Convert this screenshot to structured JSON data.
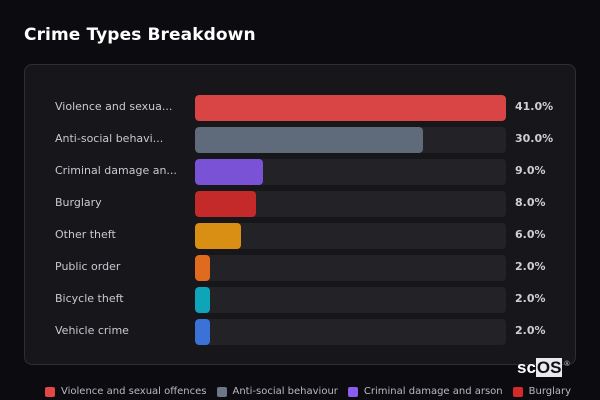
{
  "header": {
    "title": "Crime Types Breakdown"
  },
  "rows": [
    {
      "label": "Violence and sexua...",
      "full_label": "Violence and sexual offences",
      "value": 41.0,
      "pct_label": "41.0%",
      "color": "#d94444"
    },
    {
      "label": "Anti-social behavi...",
      "full_label": "Anti-social behaviour",
      "value": 30.0,
      "pct_label": "30.0%",
      "color": "#5f6b7a"
    },
    {
      "label": "Criminal damage an...",
      "full_label": "Criminal damage and arson",
      "value": 9.0,
      "pct_label": "9.0%",
      "color": "#7a52d6"
    },
    {
      "label": "Burglary",
      "full_label": "Burglary",
      "value": 8.0,
      "pct_label": "8.0%",
      "color": "#c42a2a"
    },
    {
      "label": "Other theft",
      "full_label": "Other theft",
      "value": 6.0,
      "pct_label": "6.0%",
      "color": "#d98e14"
    },
    {
      "label": "Public order",
      "full_label": "Public order",
      "value": 2.0,
      "pct_label": "2.0%",
      "color": "#e06a1e"
    },
    {
      "label": "Bicycle theft",
      "full_label": "Bicycle theft",
      "value": 2.0,
      "pct_label": "2.0%",
      "color": "#0ea5b8"
    },
    {
      "label": "Vehicle crime",
      "full_label": "Vehicle crime",
      "value": 2.0,
      "pct_label": "2.0%",
      "color": "#3a72d8"
    }
  ],
  "legend": [
    {
      "label": "Violence and sexual offences",
      "color": "#e04848"
    },
    {
      "label": "Anti-social behaviour",
      "color": "#6b7789"
    },
    {
      "label": "Criminal damage and arson",
      "color": "#8a5cf0"
    },
    {
      "label": "Burglary",
      "color": "#d42a2a"
    }
  ],
  "brand": {
    "sc": "sc",
    "os": "OS",
    "reg": "®"
  },
  "chart_data": {
    "type": "bar",
    "orientation": "horizontal",
    "title": "Crime Types Breakdown",
    "categories": [
      "Violence and sexual offences",
      "Anti-social behaviour",
      "Criminal damage and arson",
      "Burglary",
      "Other theft",
      "Public order",
      "Bicycle theft",
      "Vehicle crime"
    ],
    "values": [
      41.0,
      30.0,
      9.0,
      8.0,
      6.0,
      2.0,
      2.0,
      2.0
    ],
    "unit": "%",
    "xlabel": "",
    "ylabel": "",
    "xlim": [
      0,
      41.0
    ],
    "grid": false,
    "legend_position": "bottom",
    "legend_entries": [
      "Violence and sexual offences",
      "Anti-social behaviour",
      "Criminal damage and arson",
      "Burglary"
    ]
  }
}
